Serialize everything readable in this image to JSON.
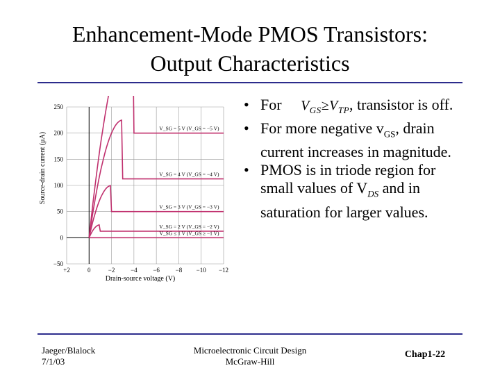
{
  "slide": {
    "title_line1": "Enhancement-Mode PMOS Transistors:",
    "title_line2": "Output Characteristics"
  },
  "bullets": {
    "b1_prefix": "For",
    "b1_math_v": "V",
    "b1_math_gs": "GS",
    "b1_math_op": "≥",
    "b1_math_v2": "V",
    "b1_math_tp": "TP",
    "b1_suffix": ", transistor is off.",
    "b2_prefix": "For more negative v",
    "b2_sub": "GS",
    "b2_suffix": ", drain current increases in magnitude.",
    "b3_prefix": "PMOS is in triode region for small values of V",
    "b3_sub": "DS",
    "b3_suffix": " and in saturation for larger values."
  },
  "footer": {
    "author": "Jaeger/Blalock",
    "date": "7/1/03",
    "book": "Microelectronic Circuit Design",
    "publisher": "McGraw-Hill",
    "page": "Chap1-22"
  },
  "colors": {
    "curve": "#c0306e",
    "axis": "#000000",
    "grid": "#9a9a9a",
    "rule": "#2c2c8c"
  },
  "chart_data": {
    "type": "line",
    "title": "",
    "xlabel": "Drain-source voltage (V)",
    "ylabel": "Source-drain current (μA)",
    "xlim": [
      2,
      -12
    ],
    "ylim": [
      -50,
      250
    ],
    "x_ticks": [
      2,
      0,
      -2,
      -4,
      -6,
      -8,
      -10,
      -12
    ],
    "x_tick_labels": [
      "+2",
      "0",
      "−2",
      "−4",
      "−6",
      "−8",
      "−10",
      "−12"
    ],
    "y_ticks": [
      -50,
      0,
      50,
      100,
      150,
      200,
      250
    ],
    "y_tick_labels": [
      "−50",
      "0",
      "50",
      "100",
      "150",
      "200",
      "250"
    ],
    "vtp": -1,
    "k": 50,
    "series": [
      {
        "name": "V_SG = 5 V (V_GS = −5 V)",
        "vgs": -5,
        "isat": 200
      },
      {
        "name": "V_SG = 4 V (V_GS = −4 V)",
        "vgs": -4,
        "isat": 112.5
      },
      {
        "name": "V_SG = 3 V (V_GS = −3 V)",
        "vgs": -3,
        "isat": 50
      },
      {
        "name": "V_SG = 2 V (V_GS = −2 V)",
        "vgs": -2,
        "isat": 12.5
      },
      {
        "name": "V_SG ≤ 1 V (V_GS ≥ −1 V)",
        "vgs": -1,
        "isat": 0
      }
    ]
  }
}
